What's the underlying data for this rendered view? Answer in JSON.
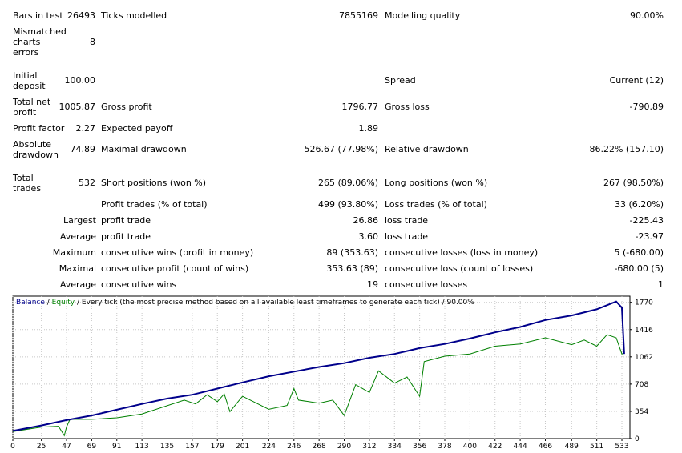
{
  "report": {
    "bars_in_test_label": "Bars in test",
    "bars_in_test_value": "26493",
    "ticks_modelled_label": "Ticks modelled",
    "ticks_modelled_value": "7855169",
    "modelling_quality_label": "Modelling quality",
    "modelling_quality_value": "90.00%",
    "mismatched_label": "Mismatched charts errors",
    "mismatched_value": "8",
    "initial_deposit_label": "Initial deposit",
    "initial_deposit_value": "100.00",
    "spread_label": "Spread",
    "spread_value": "Current (12)",
    "total_net_profit_label": "Total net profit",
    "total_net_profit_value": "1005.87",
    "gross_profit_label": "Gross profit",
    "gross_profit_value": "1796.77",
    "gross_loss_label": "Gross loss",
    "gross_loss_value": "-790.89",
    "profit_factor_label": "Profit factor",
    "profit_factor_value": "2.27",
    "expected_payoff_label": "Expected payoff",
    "expected_payoff_value": "1.89",
    "absolute_drawdown_label": "Absolute drawdown",
    "absolute_drawdown_value": "74.89",
    "maximal_drawdown_label": "Maximal drawdown",
    "maximal_drawdown_value": "526.67 (77.98%)",
    "relative_drawdown_label": "Relative drawdown",
    "relative_drawdown_value": "86.22% (157.10)",
    "total_trades_label": "Total trades",
    "total_trades_value": "532",
    "short_positions_label": "Short positions (won %)",
    "short_positions_value": "265 (89.06%)",
    "long_positions_label": "Long positions (won %)",
    "long_positions_value": "267 (98.50%)",
    "profit_trades_label": "Profit trades (% of total)",
    "profit_trades_value": "499 (93.80%)",
    "loss_trades_label": "Loss trades (% of total)",
    "loss_trades_value": "33 (6.20%)",
    "largest_label": "Largest",
    "largest_profit_label": "profit trade",
    "largest_profit_value": "26.86",
    "largest_loss_label": "loss trade",
    "largest_loss_value": "-225.43",
    "average_label": "Average",
    "average_profit_label": "profit trade",
    "average_profit_value": "3.60",
    "average_loss_label": "loss trade",
    "average_loss_value": "-23.97",
    "maximum_label": "Maximum",
    "max_cons_wins_label": "consecutive wins (profit in money)",
    "max_cons_wins_value": "89 (353.63)",
    "max_cons_losses_label": "consecutive losses (loss in money)",
    "max_cons_losses_value": "5 (-680.00)",
    "maximal_label": "Maximal",
    "maximal_cons_profit_label": "consecutive profit (count of wins)",
    "maximal_cons_profit_value": "353.63 (89)",
    "maximal_cons_loss_label": "consecutive loss (count of losses)",
    "maximal_cons_loss_value": "-680.00 (5)",
    "average2_label": "Average",
    "avg_cons_wins_label": "consecutive wins",
    "avg_cons_wins_value": "19",
    "avg_cons_losses_label": "consecutive losses",
    "avg_cons_losses_value": "1"
  },
  "chart_caption": {
    "balance": "Balance",
    "sep1": " / ",
    "equity": "Equity",
    "rest": " / Every tick (the most precise method based on all available least timeframes to generate each tick) / 90.00%"
  },
  "colors": {
    "balance": "#00008b",
    "equity": "#008000",
    "grid": "#c8c8c8",
    "frame": "#000000"
  },
  "chart_data": {
    "type": "line",
    "xlim": [
      0,
      540
    ],
    "ylim": [
      0,
      1850
    ],
    "x_ticks": [
      0,
      25,
      47,
      69,
      91,
      113,
      135,
      157,
      179,
      201,
      224,
      246,
      268,
      290,
      312,
      334,
      356,
      378,
      400,
      422,
      444,
      466,
      489,
      511,
      533
    ],
    "y_ticks": [
      0,
      354,
      708,
      1062,
      1416,
      1770
    ],
    "series": [
      {
        "name": "Balance",
        "x": [
          0,
          25,
          47,
          69,
          91,
          113,
          135,
          157,
          179,
          201,
          224,
          246,
          268,
          290,
          312,
          334,
          356,
          378,
          400,
          422,
          444,
          466,
          489,
          511,
          528,
          533,
          535
        ],
        "y": [
          100,
          170,
          240,
          300,
          375,
          450,
          520,
          570,
          650,
          730,
          810,
          870,
          930,
          980,
          1050,
          1100,
          1175,
          1230,
          1300,
          1380,
          1450,
          1540,
          1600,
          1680,
          1780,
          1700,
          1100
        ]
      },
      {
        "name": "Equity",
        "x": [
          0,
          25,
          40,
          45,
          47,
          50,
          69,
          91,
          113,
          150,
          160,
          170,
          179,
          185,
          190,
          201,
          224,
          240,
          246,
          250,
          268,
          280,
          290,
          300,
          312,
          320,
          334,
          345,
          356,
          360,
          378,
          400,
          422,
          444,
          466,
          489,
          500,
          511,
          520,
          528,
          533,
          535
        ],
        "y": [
          90,
          150,
          160,
          40,
          150,
          250,
          250,
          270,
          320,
          500,
          450,
          570,
          480,
          580,
          350,
          550,
          380,
          430,
          650,
          500,
          460,
          500,
          300,
          700,
          600,
          880,
          720,
          800,
          550,
          1000,
          1070,
          1100,
          1200,
          1230,
          1310,
          1220,
          1280,
          1200,
          1350,
          1310,
          1100,
          1110
        ]
      }
    ]
  }
}
